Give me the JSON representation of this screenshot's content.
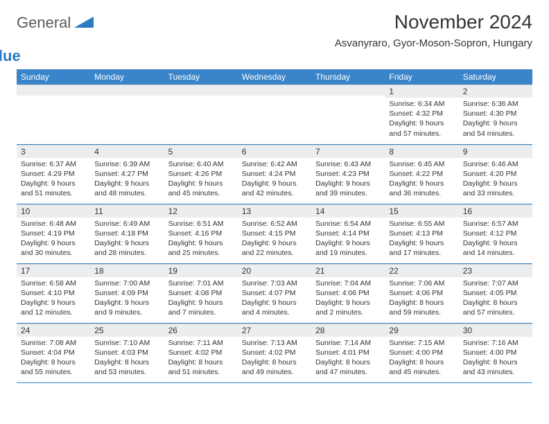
{
  "logo": {
    "part1": "General",
    "part2": "Blue"
  },
  "title": "November 2024",
  "subtitle": "Asvanyraro, Gyor-Moson-Sopron, Hungary",
  "colors": {
    "header_bg": "#3a85c9",
    "header_text": "#ffffff",
    "daynum_bg": "#ecedee",
    "border": "#3a85c9",
    "logo_gray": "#5a5a5a",
    "logo_blue": "#2a7bc0",
    "text": "#333333",
    "background": "#ffffff"
  },
  "columns": [
    "Sunday",
    "Monday",
    "Tuesday",
    "Wednesday",
    "Thursday",
    "Friday",
    "Saturday"
  ],
  "weeks": [
    [
      null,
      null,
      null,
      null,
      null,
      {
        "n": "1",
        "sr": "6:34 AM",
        "ss": "4:32 PM",
        "dl": "9 hours and 57 minutes."
      },
      {
        "n": "2",
        "sr": "6:36 AM",
        "ss": "4:30 PM",
        "dl": "9 hours and 54 minutes."
      }
    ],
    [
      {
        "n": "3",
        "sr": "6:37 AM",
        "ss": "4:29 PM",
        "dl": "9 hours and 51 minutes."
      },
      {
        "n": "4",
        "sr": "6:39 AM",
        "ss": "4:27 PM",
        "dl": "9 hours and 48 minutes."
      },
      {
        "n": "5",
        "sr": "6:40 AM",
        "ss": "4:26 PM",
        "dl": "9 hours and 45 minutes."
      },
      {
        "n": "6",
        "sr": "6:42 AM",
        "ss": "4:24 PM",
        "dl": "9 hours and 42 minutes."
      },
      {
        "n": "7",
        "sr": "6:43 AM",
        "ss": "4:23 PM",
        "dl": "9 hours and 39 minutes."
      },
      {
        "n": "8",
        "sr": "6:45 AM",
        "ss": "4:22 PM",
        "dl": "9 hours and 36 minutes."
      },
      {
        "n": "9",
        "sr": "6:46 AM",
        "ss": "4:20 PM",
        "dl": "9 hours and 33 minutes."
      }
    ],
    [
      {
        "n": "10",
        "sr": "6:48 AM",
        "ss": "4:19 PM",
        "dl": "9 hours and 30 minutes."
      },
      {
        "n": "11",
        "sr": "6:49 AM",
        "ss": "4:18 PM",
        "dl": "9 hours and 28 minutes."
      },
      {
        "n": "12",
        "sr": "6:51 AM",
        "ss": "4:16 PM",
        "dl": "9 hours and 25 minutes."
      },
      {
        "n": "13",
        "sr": "6:52 AM",
        "ss": "4:15 PM",
        "dl": "9 hours and 22 minutes."
      },
      {
        "n": "14",
        "sr": "6:54 AM",
        "ss": "4:14 PM",
        "dl": "9 hours and 19 minutes."
      },
      {
        "n": "15",
        "sr": "6:55 AM",
        "ss": "4:13 PM",
        "dl": "9 hours and 17 minutes."
      },
      {
        "n": "16",
        "sr": "6:57 AM",
        "ss": "4:12 PM",
        "dl": "9 hours and 14 minutes."
      }
    ],
    [
      {
        "n": "17",
        "sr": "6:58 AM",
        "ss": "4:10 PM",
        "dl": "9 hours and 12 minutes."
      },
      {
        "n": "18",
        "sr": "7:00 AM",
        "ss": "4:09 PM",
        "dl": "9 hours and 9 minutes."
      },
      {
        "n": "19",
        "sr": "7:01 AM",
        "ss": "4:08 PM",
        "dl": "9 hours and 7 minutes."
      },
      {
        "n": "20",
        "sr": "7:03 AM",
        "ss": "4:07 PM",
        "dl": "9 hours and 4 minutes."
      },
      {
        "n": "21",
        "sr": "7:04 AM",
        "ss": "4:06 PM",
        "dl": "9 hours and 2 minutes."
      },
      {
        "n": "22",
        "sr": "7:06 AM",
        "ss": "4:06 PM",
        "dl": "8 hours and 59 minutes."
      },
      {
        "n": "23",
        "sr": "7:07 AM",
        "ss": "4:05 PM",
        "dl": "8 hours and 57 minutes."
      }
    ],
    [
      {
        "n": "24",
        "sr": "7:08 AM",
        "ss": "4:04 PM",
        "dl": "8 hours and 55 minutes."
      },
      {
        "n": "25",
        "sr": "7:10 AM",
        "ss": "4:03 PM",
        "dl": "8 hours and 53 minutes."
      },
      {
        "n": "26",
        "sr": "7:11 AM",
        "ss": "4:02 PM",
        "dl": "8 hours and 51 minutes."
      },
      {
        "n": "27",
        "sr": "7:13 AM",
        "ss": "4:02 PM",
        "dl": "8 hours and 49 minutes."
      },
      {
        "n": "28",
        "sr": "7:14 AM",
        "ss": "4:01 PM",
        "dl": "8 hours and 47 minutes."
      },
      {
        "n": "29",
        "sr": "7:15 AM",
        "ss": "4:00 PM",
        "dl": "8 hours and 45 minutes."
      },
      {
        "n": "30",
        "sr": "7:16 AM",
        "ss": "4:00 PM",
        "dl": "8 hours and 43 minutes."
      }
    ]
  ],
  "labels": {
    "sunrise": "Sunrise: ",
    "sunset": "Sunset: ",
    "daylight": "Daylight: "
  }
}
